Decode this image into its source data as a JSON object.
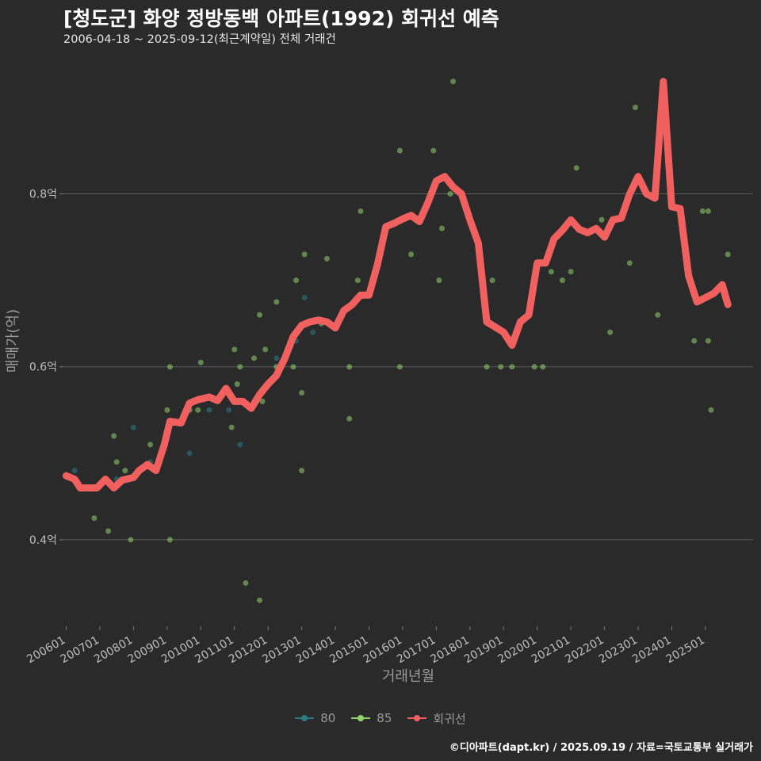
{
  "colors": {
    "background": "#2b2a2b",
    "grid": "#5c5b5c",
    "trend": "#f0605f",
    "series_80": "#2a7a86",
    "series_85": "#8fd36c",
    "text_muted": "#9a9a9a"
  },
  "caption": "©디아파트(dapt.kr) / 2025.09.19 / 자료=국토교통부 실거래가",
  "chart_data": {
    "type": "scatter",
    "title": "[청도군] 화양 정방동백 아파트(1992) 회귀선 예측",
    "subtitle": "2006-04-18 ~ 2025-09-12(최근계약일) 전체 거래건",
    "xlabel": "거래년월",
    "ylabel": "매매가(억)",
    "xlim": [
      "2006-01",
      "2025-12"
    ],
    "ylim": [
      0.3,
      0.96
    ],
    "grid": true,
    "legend_position": "bottom",
    "x_ticks": [
      "200601",
      "200701",
      "200801",
      "200901",
      "201001",
      "201101",
      "201201",
      "201301",
      "201401",
      "201501",
      "201601",
      "201701",
      "201801",
      "201901",
      "202001",
      "202101",
      "202201",
      "202301",
      "202401",
      "202501"
    ],
    "y_ticks": [
      {
        "value": 0.4,
        "label": "0.4억"
      },
      {
        "value": 0.6,
        "label": "0.6억"
      },
      {
        "value": 0.8,
        "label": "0.8억"
      }
    ],
    "legend": [
      {
        "key": "80",
        "label": "80",
        "color": "#2a7a86",
        "kind": "point"
      },
      {
        "key": "85",
        "label": "85",
        "color": "#8fd36c",
        "kind": "point"
      },
      {
        "key": "trend",
        "label": "회귀선",
        "color": "#f0605f",
        "kind": "line"
      }
    ],
    "series": [
      {
        "name": "80",
        "points": [
          [
            "2006-04",
            0.48
          ],
          [
            "2007-07",
            0.47
          ],
          [
            "2008-01",
            0.53
          ],
          [
            "2008-07",
            0.49
          ],
          [
            "2009-07",
            0.54
          ],
          [
            "2009-09",
            0.5
          ],
          [
            "2010-04",
            0.55
          ],
          [
            "2010-11",
            0.55
          ],
          [
            "2011-03",
            0.51
          ],
          [
            "2012-04",
            0.61
          ],
          [
            "2012-09",
            0.63
          ],
          [
            "2012-11",
            0.63
          ],
          [
            "2013-02",
            0.68
          ],
          [
            "2013-05",
            0.64
          ],
          [
            "2014-02",
            0.65
          ]
        ]
      },
      {
        "name": "85",
        "points": [
          [
            "2006-11",
            0.425
          ],
          [
            "2007-04",
            0.41
          ],
          [
            "2007-06",
            0.52
          ],
          [
            "2007-07",
            0.49
          ],
          [
            "2007-10",
            0.48
          ],
          [
            "2007-12",
            0.4
          ],
          [
            "2008-07",
            0.51
          ],
          [
            "2009-01",
            0.55
          ],
          [
            "2009-02",
            0.6
          ],
          [
            "2009-02",
            0.4
          ],
          [
            "2009-09",
            0.55
          ],
          [
            "2009-12",
            0.55
          ],
          [
            "2010-01",
            0.605
          ],
          [
            "2010-12",
            0.53
          ],
          [
            "2011-01",
            0.62
          ],
          [
            "2011-02",
            0.58
          ],
          [
            "2011-03",
            0.6
          ],
          [
            "2011-05",
            0.35
          ],
          [
            "2011-08",
            0.61
          ],
          [
            "2011-10",
            0.33
          ],
          [
            "2011-10",
            0.66
          ],
          [
            "2011-12",
            0.62
          ],
          [
            "2011-11",
            0.56
          ],
          [
            "2012-04",
            0.675
          ],
          [
            "2012-04",
            0.6
          ],
          [
            "2012-10",
            0.6
          ],
          [
            "2012-11",
            0.7
          ],
          [
            "2013-01",
            0.57
          ],
          [
            "2013-01",
            0.48
          ],
          [
            "2013-02",
            0.73
          ],
          [
            "2013-08",
            0.65
          ],
          [
            "2013-10",
            0.725
          ],
          [
            "2014-06",
            0.6
          ],
          [
            "2014-06",
            0.54
          ],
          [
            "2014-09",
            0.7
          ],
          [
            "2014-10",
            0.78
          ],
          [
            "2015-12",
            0.85
          ],
          [
            "2015-12",
            0.6
          ],
          [
            "2016-04",
            0.73
          ],
          [
            "2016-12",
            0.85
          ],
          [
            "2017-02",
            0.7
          ],
          [
            "2017-03",
            0.76
          ],
          [
            "2017-06",
            0.8
          ],
          [
            "2017-07",
            0.93
          ],
          [
            "2018-07",
            0.6
          ],
          [
            "2018-09",
            0.7
          ],
          [
            "2018-12",
            0.6
          ],
          [
            "2019-01",
            0.64
          ],
          [
            "2019-04",
            0.6
          ],
          [
            "2019-12",
            0.6
          ],
          [
            "2020-03",
            0.6
          ],
          [
            "2020-06",
            0.71
          ],
          [
            "2020-10",
            0.7
          ],
          [
            "2021-03",
            0.83
          ],
          [
            "2021-01",
            0.71
          ],
          [
            "2021-12",
            0.77
          ],
          [
            "2022-03",
            0.64
          ],
          [
            "2022-12",
            0.9
          ],
          [
            "2022-10",
            0.72
          ],
          [
            "2023-08",
            0.66
          ],
          [
            "2024-09",
            0.63
          ],
          [
            "2024-12",
            0.78
          ],
          [
            "2025-02",
            0.78
          ],
          [
            "2025-02",
            0.63
          ],
          [
            "2025-03",
            0.55
          ],
          [
            "2025-09",
            0.73
          ]
        ]
      },
      {
        "name": "회귀선",
        "points": [
          [
            "2006-01",
            0.474
          ],
          [
            "2006-04",
            0.47
          ],
          [
            "2006-06",
            0.46
          ],
          [
            "2006-12",
            0.46
          ],
          [
            "2007-03",
            0.47
          ],
          [
            "2007-06",
            0.46
          ],
          [
            "2007-09",
            0.469
          ],
          [
            "2008-01",
            0.472
          ],
          [
            "2008-03",
            0.48
          ],
          [
            "2008-06",
            0.487
          ],
          [
            "2008-09",
            0.48
          ],
          [
            "2008-12",
            0.51
          ],
          [
            "2009-02",
            0.537
          ],
          [
            "2009-06",
            0.535
          ],
          [
            "2009-09",
            0.558
          ],
          [
            "2009-12",
            0.562
          ],
          [
            "2010-04",
            0.565
          ],
          [
            "2010-07",
            0.561
          ],
          [
            "2010-10",
            0.575
          ],
          [
            "2011-01",
            0.56
          ],
          [
            "2011-04",
            0.56
          ],
          [
            "2011-07",
            0.552
          ],
          [
            "2011-10",
            0.568
          ],
          [
            "2012-01",
            0.58
          ],
          [
            "2012-04",
            0.59
          ],
          [
            "2012-07",
            0.61
          ],
          [
            "2012-10",
            0.635
          ],
          [
            "2013-01",
            0.648
          ],
          [
            "2013-04",
            0.652
          ],
          [
            "2013-07",
            0.654
          ],
          [
            "2013-10",
            0.652
          ],
          [
            "2014-01",
            0.645
          ],
          [
            "2014-04",
            0.665
          ],
          [
            "2014-07",
            0.672
          ],
          [
            "2014-10",
            0.683
          ],
          [
            "2015-01",
            0.683
          ],
          [
            "2015-04",
            0.718
          ],
          [
            "2015-07",
            0.762
          ],
          [
            "2015-10",
            0.766
          ],
          [
            "2016-01",
            0.771
          ],
          [
            "2016-04",
            0.775
          ],
          [
            "2016-07",
            0.768
          ],
          [
            "2016-10",
            0.79
          ],
          [
            "2017-01",
            0.815
          ],
          [
            "2017-04",
            0.82
          ],
          [
            "2017-07",
            0.808
          ],
          [
            "2017-10",
            0.8
          ],
          [
            "2018-01",
            0.77
          ],
          [
            "2018-04",
            0.743
          ],
          [
            "2018-07",
            0.652
          ],
          [
            "2018-10",
            0.646
          ],
          [
            "2019-01",
            0.64
          ],
          [
            "2019-04",
            0.625
          ],
          [
            "2019-07",
            0.652
          ],
          [
            "2019-10",
            0.66
          ],
          [
            "2020-01",
            0.72
          ],
          [
            "2020-04",
            0.72
          ],
          [
            "2020-07",
            0.748
          ],
          [
            "2020-10",
            0.758
          ],
          [
            "2021-01",
            0.77
          ],
          [
            "2021-04",
            0.759
          ],
          [
            "2021-07",
            0.755
          ],
          [
            "2021-10",
            0.76
          ],
          [
            "2022-01",
            0.75
          ],
          [
            "2022-04",
            0.77
          ],
          [
            "2022-07",
            0.772
          ],
          [
            "2022-10",
            0.8
          ],
          [
            "2023-01",
            0.82
          ],
          [
            "2023-04",
            0.8
          ],
          [
            "2023-07",
            0.795
          ],
          [
            "2023-10",
            0.93
          ],
          [
            "2024-01",
            0.785
          ],
          [
            "2024-04",
            0.783
          ],
          [
            "2024-07",
            0.705
          ],
          [
            "2024-10",
            0.675
          ],
          [
            "2025-01",
            0.68
          ],
          [
            "2025-04",
            0.685
          ],
          [
            "2025-07",
            0.695
          ],
          [
            "2025-09",
            0.672
          ]
        ]
      }
    ]
  }
}
